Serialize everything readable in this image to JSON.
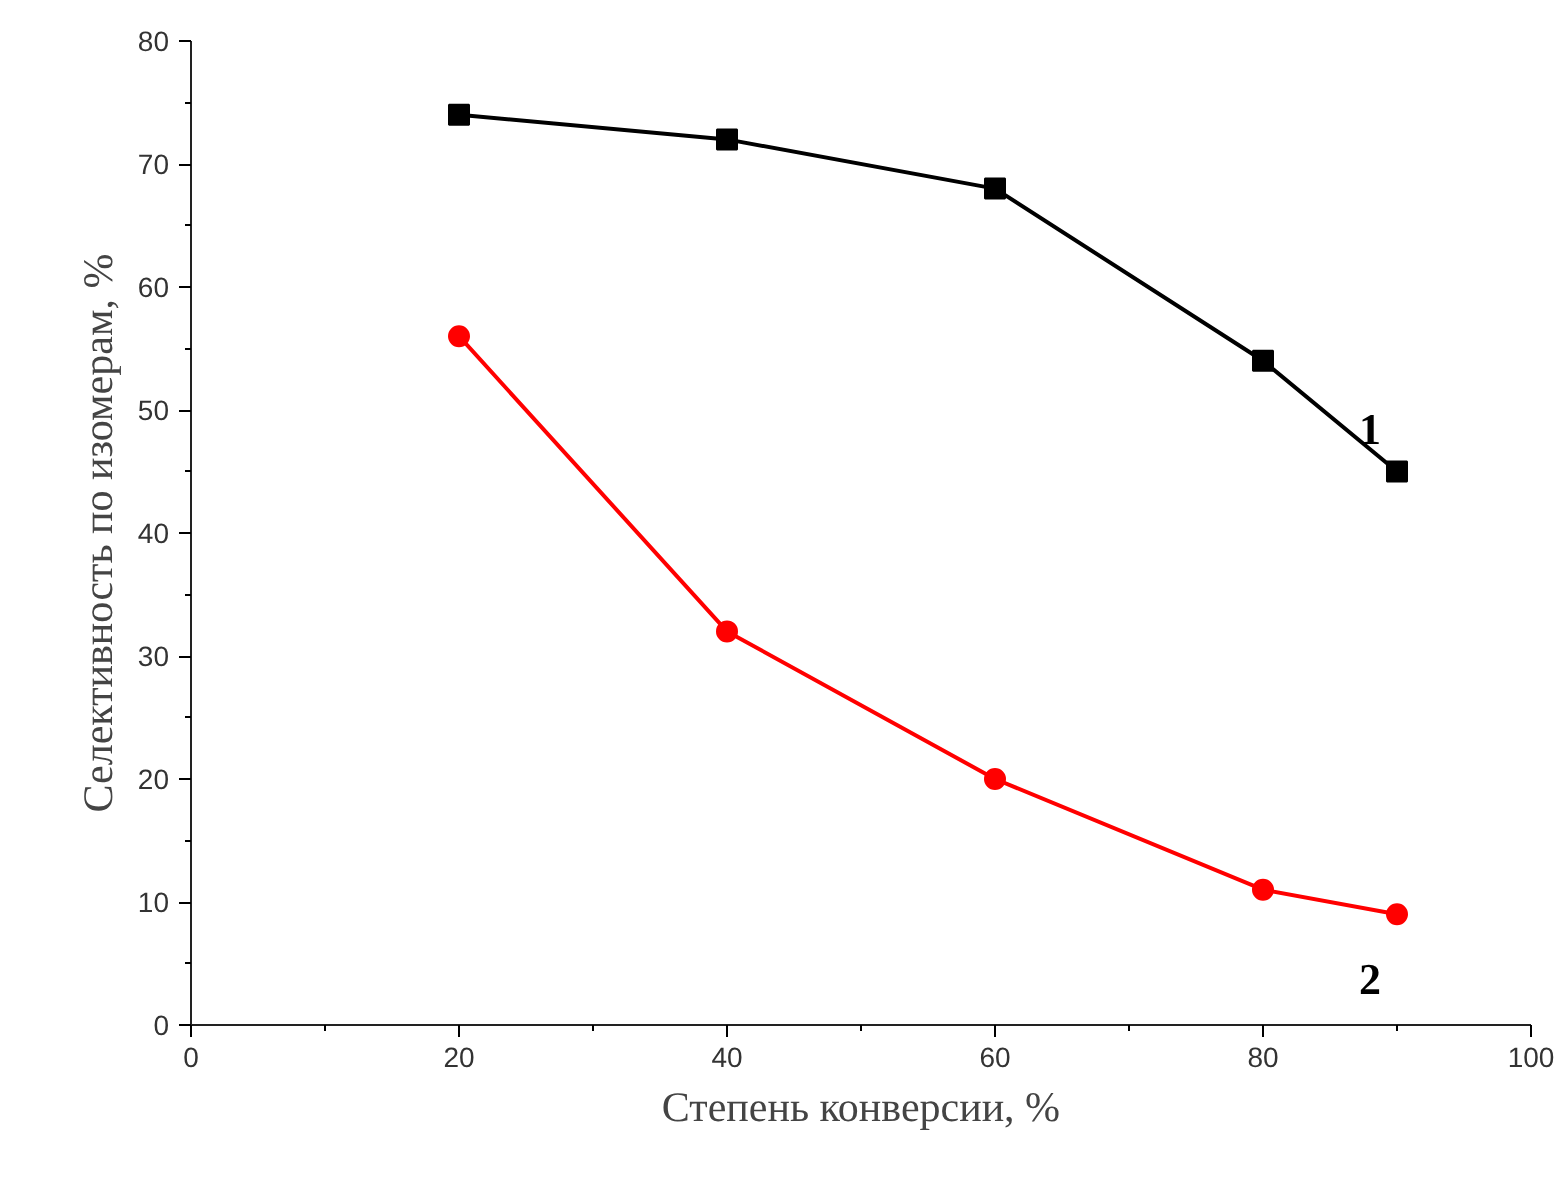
{
  "chart_data": {
    "type": "line",
    "xlabel": "Степень конверсии, %",
    "ylabel": "Селективность по изомерам, %",
    "x": [
      20,
      40,
      60,
      80,
      90
    ],
    "series": [
      {
        "name": "1",
        "color": "#000000",
        "values": [
          74,
          72,
          68,
          54,
          45
        ],
        "marker": "square"
      },
      {
        "name": "2",
        "color": "#ff0000",
        "values": [
          56,
          32,
          20,
          11,
          9
        ],
        "marker": "circle"
      }
    ],
    "xlim": [
      0,
      100
    ],
    "ylim": [
      0,
      80
    ],
    "xticks": [
      0,
      {
        "value": 10,
        "label": null
      },
      20,
      {
        "value": 30,
        "label": null
      },
      40,
      {
        "value": 50,
        "label": null
      },
      60,
      {
        "value": 70,
        "label": null
      },
      80,
      {
        "value": 90,
        "label": null
      },
      100
    ],
    "yticks": [
      0,
      {
        "value": 5,
        "label": null
      },
      10,
      {
        "value": 15,
        "label": null
      },
      20,
      {
        "value": 25,
        "label": null
      },
      30,
      {
        "value": 35,
        "label": null
      },
      40,
      {
        "value": 45,
        "label": null
      },
      50,
      {
        "value": 55,
        "label": null
      },
      60,
      {
        "value": 65,
        "label": null
      },
      70,
      {
        "value": 75,
        "label": null
      },
      80
    ],
    "grid": false,
    "legend": false,
    "line_style": "solid"
  }
}
